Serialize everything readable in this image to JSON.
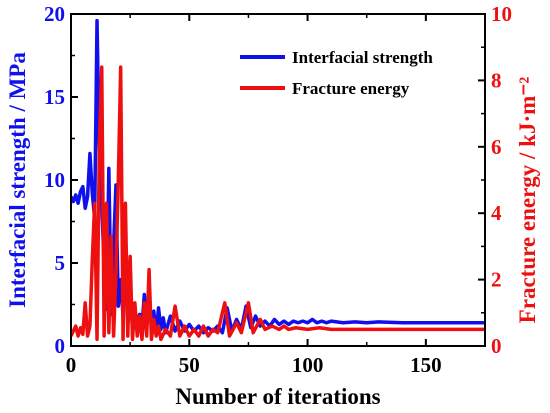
{
  "chart_data": {
    "type": "line",
    "xlabel": "Number of iterations",
    "ylabel_left": "Interfacial strength / MPa",
    "ylabel_right": "Fracture energy / kJ·m⁻²",
    "xlim": [
      0,
      175
    ],
    "ylim_left": [
      0,
      20
    ],
    "ylim_right": [
      0,
      10
    ],
    "x_ticks": [
      0,
      50,
      100,
      150
    ],
    "y_ticks_left": [
      0,
      5,
      10,
      15,
      20
    ],
    "y_ticks_right": [
      0,
      2,
      4,
      6,
      8,
      10
    ],
    "legend_position": "top-right",
    "grid": false,
    "colors": {
      "left_axis": "#1010ee",
      "right_axis": "#ee1010"
    },
    "series": [
      {
        "name": "Interfacial strength",
        "axis": "left",
        "color": "#1010ee",
        "points": [
          [
            0,
            9.0
          ],
          [
            1,
            8.7
          ],
          [
            2,
            9.1
          ],
          [
            3,
            8.6
          ],
          [
            4,
            9.3
          ],
          [
            5,
            9.6
          ],
          [
            6,
            8.3
          ],
          [
            7,
            9.0
          ],
          [
            8,
            11.6
          ],
          [
            9,
            9.2
          ],
          [
            10,
            7.7
          ],
          [
            11,
            19.6
          ],
          [
            12,
            11.3
          ],
          [
            13,
            8.5
          ],
          [
            14,
            4.8
          ],
          [
            15,
            2.2
          ],
          [
            16,
            10.7
          ],
          [
            17,
            1.9
          ],
          [
            18,
            6.0
          ],
          [
            19,
            9.7
          ],
          [
            20,
            2.4
          ],
          [
            21,
            4.0
          ],
          [
            22,
            1.8
          ],
          [
            23,
            4.9
          ],
          [
            24,
            1.6
          ],
          [
            25,
            2.7
          ],
          [
            26,
            1.2
          ],
          [
            27,
            2.0
          ],
          [
            28,
            1.5
          ],
          [
            29,
            1.9
          ],
          [
            30,
            1.2
          ],
          [
            31,
            3.1
          ],
          [
            32,
            1.1
          ],
          [
            33,
            2.8
          ],
          [
            34,
            1.3
          ],
          [
            35,
            2.1
          ],
          [
            36,
            0.7
          ],
          [
            37,
            2.3
          ],
          [
            38,
            1.0
          ],
          [
            39,
            1.7
          ],
          [
            40,
            0.8
          ],
          [
            42,
            1.8
          ],
          [
            44,
            0.9
          ],
          [
            46,
            1.5
          ],
          [
            48,
            0.9
          ],
          [
            50,
            1.3
          ],
          [
            52,
            0.9
          ],
          [
            54,
            1.2
          ],
          [
            56,
            0.8
          ],
          [
            58,
            1.1
          ],
          [
            60,
            0.9
          ],
          [
            62,
            1.2
          ],
          [
            64,
            0.8
          ],
          [
            66,
            2.3
          ],
          [
            68,
            0.9
          ],
          [
            70,
            1.6
          ],
          [
            72,
            1.0
          ],
          [
            74,
            2.4
          ],
          [
            76,
            1.1
          ],
          [
            78,
            1.8
          ],
          [
            80,
            1.2
          ],
          [
            82,
            1.5
          ],
          [
            84,
            1.2
          ],
          [
            86,
            1.6
          ],
          [
            88,
            1.3
          ],
          [
            90,
            1.5
          ],
          [
            92,
            1.3
          ],
          [
            94,
            1.5
          ],
          [
            96,
            1.4
          ],
          [
            98,
            1.5
          ],
          [
            100,
            1.4
          ],
          [
            102,
            1.6
          ],
          [
            104,
            1.4
          ],
          [
            106,
            1.5
          ],
          [
            108,
            1.4
          ],
          [
            110,
            1.5
          ],
          [
            115,
            1.4
          ],
          [
            120,
            1.45
          ],
          [
            125,
            1.4
          ],
          [
            130,
            1.45
          ],
          [
            140,
            1.4
          ],
          [
            150,
            1.4
          ],
          [
            160,
            1.4
          ],
          [
            175,
            1.4
          ]
        ]
      },
      {
        "name": "Fracture energy",
        "axis": "right",
        "color": "#ee1010",
        "points": [
          [
            0,
            0.3
          ],
          [
            1,
            0.45
          ],
          [
            2,
            0.6
          ],
          [
            3,
            0.3
          ],
          [
            4,
            0.55
          ],
          [
            5,
            0.35
          ],
          [
            6,
            1.3
          ],
          [
            7,
            0.3
          ],
          [
            8,
            0.6
          ],
          [
            9,
            2.6
          ],
          [
            10,
            4.3
          ],
          [
            11,
            0.2
          ],
          [
            12,
            6.1
          ],
          [
            13,
            8.4
          ],
          [
            14,
            0.3
          ],
          [
            15,
            4.3
          ],
          [
            16,
            0.4
          ],
          [
            17,
            3.3
          ],
          [
            18,
            0.3
          ],
          [
            19,
            2.2
          ],
          [
            20,
            5.0
          ],
          [
            21,
            8.4
          ],
          [
            22,
            0.2
          ],
          [
            23,
            4.3
          ],
          [
            24,
            0.3
          ],
          [
            25,
            2.7
          ],
          [
            26,
            0.2
          ],
          [
            27,
            1.3
          ],
          [
            28,
            0.3
          ],
          [
            29,
            0.9
          ],
          [
            30,
            0.2
          ],
          [
            31,
            1.3
          ],
          [
            32,
            0.3
          ],
          [
            33,
            2.3
          ],
          [
            34,
            0.2
          ],
          [
            35,
            0.8
          ],
          [
            36,
            0.3
          ],
          [
            37,
            0.6
          ],
          [
            38,
            0.2
          ],
          [
            40,
            0.5
          ],
          [
            42,
            0.3
          ],
          [
            44,
            1.2
          ],
          [
            46,
            0.3
          ],
          [
            48,
            0.6
          ],
          [
            50,
            0.3
          ],
          [
            52,
            0.5
          ],
          [
            54,
            0.3
          ],
          [
            56,
            0.6
          ],
          [
            58,
            0.3
          ],
          [
            60,
            0.5
          ],
          [
            62,
            0.4
          ],
          [
            65,
            1.3
          ],
          [
            67,
            0.3
          ],
          [
            70,
            0.7
          ],
          [
            72,
            0.4
          ],
          [
            75,
            1.3
          ],
          [
            77,
            0.4
          ],
          [
            80,
            0.8
          ],
          [
            82,
            0.5
          ],
          [
            85,
            0.6
          ],
          [
            88,
            0.5
          ],
          [
            90,
            0.6
          ],
          [
            92,
            0.5
          ],
          [
            95,
            0.55
          ],
          [
            100,
            0.5
          ],
          [
            105,
            0.55
          ],
          [
            110,
            0.5
          ],
          [
            115,
            0.5
          ],
          [
            120,
            0.5
          ],
          [
            130,
            0.5
          ],
          [
            140,
            0.5
          ],
          [
            150,
            0.5
          ],
          [
            160,
            0.5
          ],
          [
            175,
            0.5
          ]
        ]
      }
    ]
  }
}
